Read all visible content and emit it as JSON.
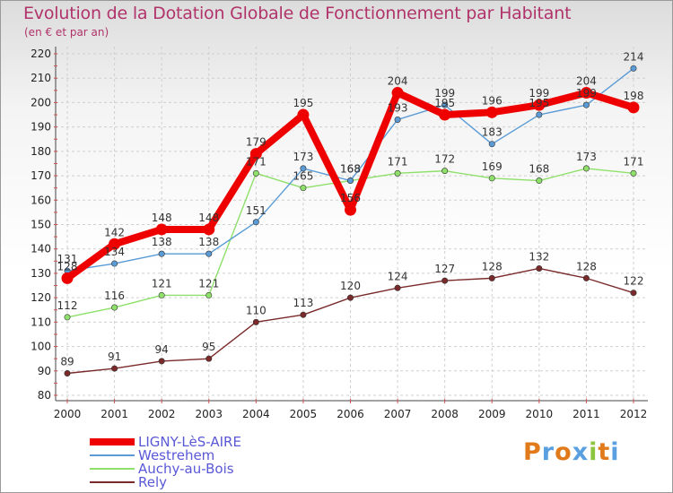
{
  "title": "Evolution de la Dotation Globale de Fonctionnement par Habitant",
  "subtitle": "(en € et par an)",
  "logo": "Proxiti",
  "chart_data": {
    "type": "line",
    "title": "Evolution de la Dotation Globale de Fonctionnement par Habitant",
    "subtitle": "(en € et par an)",
    "xlabel": "",
    "ylabel": "",
    "ylim": [
      80,
      220
    ],
    "yticks": [
      80,
      90,
      100,
      110,
      120,
      130,
      140,
      150,
      160,
      170,
      180,
      190,
      200,
      210,
      220
    ],
    "x": [
      "2000",
      "2001",
      "2002",
      "2003",
      "2004",
      "2005",
      "2006",
      "2007",
      "2008",
      "2009",
      "2010",
      "2011",
      "2012"
    ],
    "grid": true,
    "legend_position": "bottom-left",
    "series": [
      {
        "name": "LIGNY-LèS-AIRE",
        "color": "#ee0000",
        "values": [
          128,
          142,
          148,
          148,
          179,
          195,
          156,
          204,
          195,
          196,
          199,
          204,
          198
        ]
      },
      {
        "name": "Westrehem",
        "color": "#5a9bd5",
        "values": [
          131,
          134,
          138,
          138,
          151,
          173,
          168,
          193,
          199,
          183,
          195,
          199,
          214
        ]
      },
      {
        "name": "Auchy-au-Bois",
        "color": "#8ee06a",
        "values": [
          112,
          116,
          121,
          121,
          171,
          165,
          168,
          171,
          172,
          169,
          168,
          173,
          171
        ]
      },
      {
        "name": "Rely",
        "color": "#7a2a2a",
        "values": [
          89,
          91,
          94,
          95,
          110,
          113,
          120,
          124,
          127,
          128,
          132,
          128,
          122
        ]
      }
    ]
  }
}
